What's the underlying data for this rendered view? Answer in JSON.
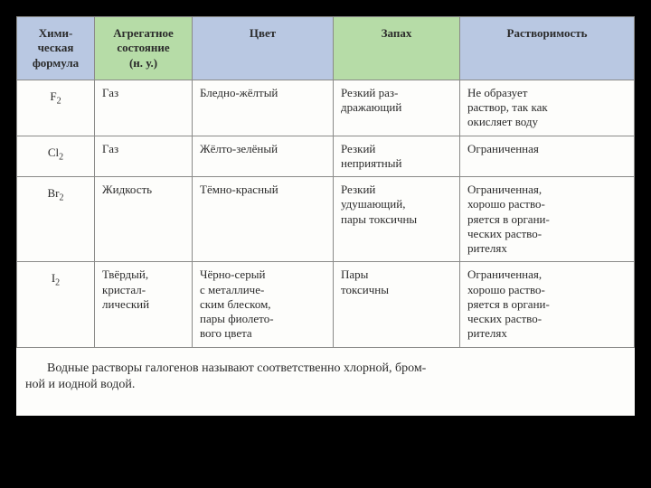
{
  "table": {
    "header_colors": {
      "formula_bg": "#b9c8e2",
      "state_bg": "#b6dca7",
      "color_bg": "#b9c8e2",
      "smell_bg": "#b6dca7",
      "solub_bg": "#b9c8e2"
    },
    "columns": [
      {
        "key": "formula",
        "label": "Хими-\nческая\nформула",
        "class": "col-formula"
      },
      {
        "key": "state",
        "label": "Агрегатное\nсостояние\n(н. у.)",
        "class": "col-state"
      },
      {
        "key": "color",
        "label": "Цвет",
        "class": "col-color"
      },
      {
        "key": "smell",
        "label": "Запах",
        "class": "col-smell"
      },
      {
        "key": "solub",
        "label": "Растворимость",
        "class": "col-solub"
      }
    ],
    "rows": [
      {
        "formula_base": "F",
        "formula_sub": "2",
        "state": "Газ",
        "color": "Бледно-жёлтый",
        "smell": "Резкий раз-\nдражающий",
        "solub": "Не образует\nраствор, так как\nокисляет воду"
      },
      {
        "formula_base": "Cl",
        "formula_sub": "2",
        "state": "Газ",
        "color": "Жёлто-зелёный",
        "smell": "Резкий\nнеприятный",
        "solub": "Ограниченная"
      },
      {
        "formula_base": "Br",
        "formula_sub": "2",
        "state": "Жидкость",
        "color": "Тёмно-красный",
        "smell": "Резкий\nудушающий,\nпары токсичны",
        "solub": "Ограниченная,\nхорошо раство-\nряется в органи-\nческих раство-\nрителях"
      },
      {
        "formula_base": "I",
        "formula_sub": "2",
        "state": "Твёрдый,\nкристал-\nлический",
        "color": "Чёрно-серый\nс металличе-\nским блеском,\nпары фиолето-\nвого цвета",
        "smell": "Пары\nтоксичны",
        "solub": "Ограниченная,\nхорошо раство-\nряется в органи-\nческих раство-\nрителях"
      }
    ]
  },
  "footer_note": "Водные растворы галогенов называют соответственно хлорной, бром-\nной и иодной водой."
}
